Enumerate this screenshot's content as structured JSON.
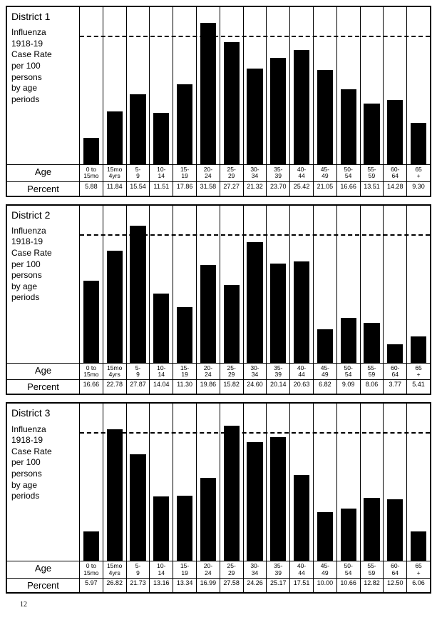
{
  "page_number": "12",
  "age_labels": [
    "0 to\n15mo",
    "15mo\n4yrs",
    "5-\n9",
    "10-\n14",
    "15-\n19",
    "20-\n24",
    "25-\n29",
    "30-\n34",
    "35-\n39",
    "40-\n44",
    "45-\n49",
    "50-\n54",
    "55-\n59",
    "60-\n64",
    "65\n+"
  ],
  "row_labels": {
    "age": "Age",
    "percent": "Percent"
  },
  "subtitle_lines": [
    "Influenza",
    "1918-19",
    "Case Rate",
    "per 100",
    "persons",
    "by age",
    "periods"
  ],
  "charts": [
    {
      "title": "District 1",
      "districtIndex": 0,
      "ymax": 35,
      "values": [
        5.88,
        11.84,
        15.54,
        11.51,
        17.86,
        31.58,
        27.27,
        21.32,
        23.7,
        25.42,
        21.05,
        16.66,
        13.51,
        14.28,
        9.3
      ],
      "percent_labels": [
        "5.88",
        "11.84",
        "15.54",
        "11.51",
        "17.86",
        "31.58",
        "27.27",
        "21.32",
        "23.70",
        "25.42",
        "21.05",
        "16.66",
        "13.51",
        "14.28",
        "9.30"
      ]
    },
    {
      "title": "District 2",
      "districtIndex": 1,
      "ymax": 32,
      "values": [
        16.66,
        22.78,
        27.87,
        14.04,
        11.3,
        19.86,
        15.82,
        24.6,
        20.14,
        20.63,
        6.82,
        9.09,
        8.06,
        3.77,
        5.41
      ],
      "percent_labels": [
        "16.66",
        "22.78",
        "27.87",
        "14.04",
        "11.30",
        "19.86",
        "15.82",
        "24.60",
        "20.14",
        "20.63",
        "6.82",
        "9.09",
        "8.06",
        "3.77",
        "5.41"
      ]
    },
    {
      "title": "District 3",
      "districtIndex": 2,
      "ymax": 32,
      "values": [
        5.97,
        26.82,
        21.73,
        13.16,
        13.34,
        16.99,
        27.58,
        24.26,
        25.17,
        17.51,
        10.0,
        10.66,
        12.82,
        12.5,
        6.06
      ],
      "percent_labels": [
        "5.97",
        "26.82",
        "21.73",
        "13.16",
        "13.34",
        "16.99",
        "27.58",
        "24.26",
        "25.17",
        "17.51",
        "10.00",
        "10.66",
        "12.82",
        "12.50",
        "6.06"
      ]
    }
  ]
}
